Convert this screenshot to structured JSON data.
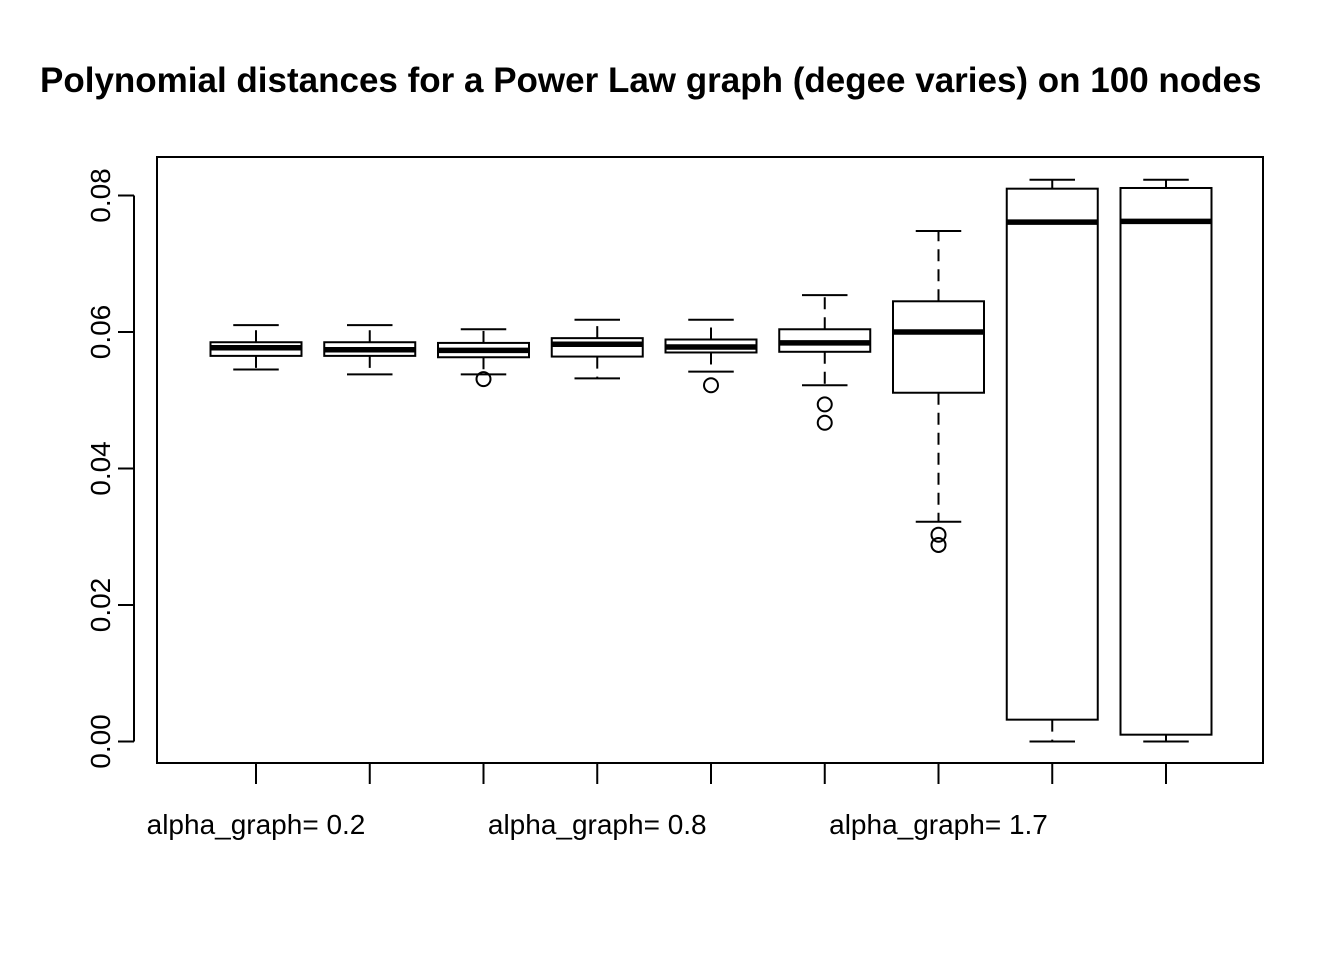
{
  "chart_data": {
    "type": "box",
    "title": "Polynomial distances for a Power Law graph (degee varies) on 100 nodes",
    "xlabel": "",
    "ylabel": "",
    "ylim": [
      -0.0032,
      0.0855
    ],
    "y_ticks": [
      "0.00",
      "0.02",
      "0.04",
      "0.06",
      "0.08"
    ],
    "y_tick_values": [
      0.0,
      0.02,
      0.04,
      0.06,
      0.08
    ],
    "x_tick_labels": [
      "alpha_graph= 0.2",
      "",
      "",
      "alpha_graph= 0.8",
      "",
      "",
      "alpha_graph= 1.7",
      "",
      ""
    ],
    "grid": false,
    "legend": "none",
    "boxes": [
      {
        "whisker_low": 0.0545,
        "q1": 0.0565,
        "median": 0.0577,
        "q3": 0.0585,
        "whisker_high": 0.061,
        "outliers": []
      },
      {
        "whisker_low": 0.0538,
        "q1": 0.0565,
        "median": 0.0574,
        "q3": 0.0585,
        "whisker_high": 0.061,
        "outliers": []
      },
      {
        "whisker_low": 0.0538,
        "q1": 0.0563,
        "median": 0.0573,
        "q3": 0.0584,
        "whisker_high": 0.0604,
        "outliers": [
          0.0531
        ]
      },
      {
        "whisker_low": 0.0532,
        "q1": 0.0564,
        "median": 0.0582,
        "q3": 0.0591,
        "whisker_high": 0.0618,
        "outliers": []
      },
      {
        "whisker_low": 0.0542,
        "q1": 0.057,
        "median": 0.0578,
        "q3": 0.0589,
        "whisker_high": 0.0618,
        "outliers": [
          0.0522
        ]
      },
      {
        "whisker_low": 0.0522,
        "q1": 0.0571,
        "median": 0.0584,
        "q3": 0.0604,
        "whisker_high": 0.0654,
        "outliers": [
          0.0494,
          0.0467
        ]
      },
      {
        "whisker_low": 0.0322,
        "q1": 0.0511,
        "median": 0.06,
        "q3": 0.0645,
        "whisker_high": 0.0748,
        "outliers": [
          0.0303,
          0.0288
        ]
      },
      {
        "whisker_low": 0.0,
        "q1": 0.0032,
        "median": 0.0761,
        "q3": 0.081,
        "whisker_high": 0.0823,
        "outliers": []
      },
      {
        "whisker_low": 0.0,
        "q1": 0.001,
        "median": 0.0762,
        "q3": 0.0811,
        "whisker_high": 0.0823,
        "outliers": []
      }
    ],
    "colors": {
      "stroke": "#000000",
      "fill": "#ffffff",
      "background": "#ffffff"
    }
  }
}
